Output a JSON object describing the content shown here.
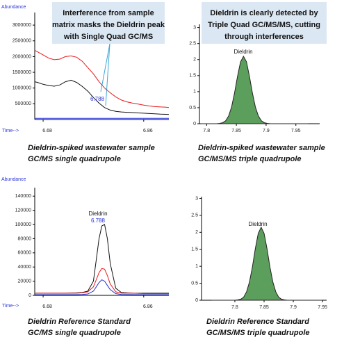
{
  "chart_data": [
    {
      "type": "line",
      "ylabel": "Abundance",
      "xlabel": "Time-->",
      "callout": [
        "Interference from sample",
        "matrix masks the Dieldrin peak",
        "with Single Quad GC/MS"
      ],
      "annotations": [
        "6.788"
      ],
      "caption": [
        "Dieldrin-spiked wastewater sample",
        "GC/MS single quadrupole"
      ],
      "x": [
        6.665,
        6.67,
        6.68,
        6.69,
        6.7,
        6.71,
        6.72,
        6.73,
        6.74,
        6.75,
        6.76,
        6.77,
        6.78,
        6.79,
        6.8,
        6.81,
        6.82,
        6.83,
        6.84,
        6.85,
        6.86,
        6.87,
        6.88,
        6.89,
        6.9,
        6.905
      ],
      "series": [
        {
          "color": "#e8191b",
          "values": [
            2200000,
            2150000,
            2050000,
            1950000,
            1900000,
            1920000,
            2000000,
            2020000,
            1980000,
            1850000,
            1650000,
            1450000,
            1200000,
            1000000,
            850000,
            720000,
            620000,
            560000,
            520000,
            490000,
            460000,
            430000,
            410000,
            400000,
            390000,
            380000
          ]
        },
        {
          "color": "#111111",
          "values": [
            1200000,
            1180000,
            1120000,
            1080000,
            1060000,
            1100000,
            1200000,
            1250000,
            1180000,
            1050000,
            900000,
            700000,
            520000,
            380000,
            300000,
            260000,
            240000,
            230000,
            220000,
            210000,
            200000,
            190000,
            180000,
            170000,
            165000,
            160000
          ]
        },
        {
          "color": "#2430d8",
          "values": [
            40000,
            40000,
            40000,
            40000,
            40000,
            40000,
            40000,
            40000,
            40000,
            40000,
            40000,
            40000,
            40000,
            40000,
            40000,
            40000,
            40000,
            40000,
            40000,
            40000,
            40000,
            40000,
            40000,
            40000,
            40000,
            40000
          ]
        }
      ],
      "xlim": [
        6.665,
        6.905
      ],
      "ylim": [
        0,
        3400000
      ],
      "xticks": [
        6.68,
        6.86
      ],
      "yticks": [
        500000,
        1000000,
        1500000,
        2000000,
        2500000,
        3000000
      ]
    },
    {
      "type": "area",
      "callout": [
        "Dieldrin is clearly detected by",
        "Triple Quad GC/MS/MS, cutting",
        "through interferences"
      ],
      "annotations": [
        "Dieldrin"
      ],
      "caption": [
        "Dieldrin-spiked wastewater sample",
        "GC/MS/MS triple quadrupole"
      ],
      "x": [
        7.79,
        7.812,
        7.817,
        7.822,
        7.827,
        7.832,
        7.837,
        7.842,
        7.847,
        7.852,
        7.857,
        7.862,
        7.867,
        7.872,
        7.877,
        7.882,
        7.887,
        7.892,
        7.897,
        7.902,
        7.907,
        7.912,
        7.97
      ],
      "series": [
        {
          "color": "#5c9e5c",
          "values": [
            0,
            0,
            0,
            0.01,
            0.03,
            0.09,
            0.24,
            0.52,
            0.96,
            1.48,
            1.93,
            2.1,
            1.93,
            1.48,
            0.96,
            0.52,
            0.24,
            0.09,
            0.03,
            0.01,
            0,
            0,
            0
          ]
        }
      ],
      "xlim": [
        7.788,
        7.99
      ],
      "ylim": [
        0,
        3.1
      ],
      "xticks": [
        7.8,
        7.85,
        7.9,
        7.95
      ],
      "yticks": [
        0,
        0.5,
        1,
        1.5,
        2,
        2.5,
        3
      ]
    },
    {
      "type": "line",
      "ylabel": "Abundance",
      "xlabel": "Time-->",
      "annotations": [
        "Dieldrin",
        "6.788"
      ],
      "caption": [
        "Dieldrin Reference Standard",
        "GC/MS single quadrupole"
      ],
      "x": [
        6.665,
        6.68,
        6.7,
        6.72,
        6.74,
        6.75,
        6.76,
        6.77,
        6.775,
        6.78,
        6.785,
        6.79,
        6.795,
        6.8,
        6.81,
        6.82,
        6.84,
        6.86,
        6.88,
        6.9,
        6.905
      ],
      "series": [
        {
          "color": "#111111",
          "values": [
            3000,
            3000,
            3000,
            3000,
            3500,
            4000,
            6000,
            20000,
            50000,
            80000,
            98000,
            100000,
            80000,
            45000,
            10000,
            4000,
            3000,
            3000,
            3000,
            3000,
            3000
          ]
        },
        {
          "color": "#e8191b",
          "values": [
            3000,
            3000,
            3000,
            3000,
            3000,
            3500,
            5000,
            12000,
            22000,
            32000,
            38000,
            37000,
            28000,
            16000,
            5000,
            3000,
            3000,
            2500,
            2500,
            2500,
            2500
          ]
        },
        {
          "color": "#2430d8",
          "values": [
            1000,
            1000,
            1000,
            1000,
            1000,
            1200,
            2000,
            6000,
            12000,
            18000,
            22000,
            20000,
            14000,
            8000,
            2500,
            1200,
            1000,
            1000,
            1000,
            1000,
            1000
          ]
        }
      ],
      "xlim": [
        6.665,
        6.905
      ],
      "ylim": [
        0,
        152000
      ],
      "xticks": [
        6.68,
        6.86
      ],
      "yticks": [
        0,
        20000,
        40000,
        60000,
        80000,
        100000,
        120000,
        140000
      ]
    },
    {
      "type": "area",
      "annotations": [
        "Dieldrin"
      ],
      "caption": [
        "Dieldrin Reference Standard",
        "GC/MS/MS triple quadrupole"
      ],
      "x": [
        7.76,
        7.795,
        7.8,
        7.805,
        7.81,
        7.815,
        7.82,
        7.825,
        7.83,
        7.835,
        7.84,
        7.845,
        7.85,
        7.855,
        7.86,
        7.865,
        7.87,
        7.875,
        7.88,
        7.885,
        7.89,
        7.895,
        7.95
      ],
      "series": [
        {
          "color": "#5c9e5c",
          "values": [
            0,
            0,
            0,
            0.01,
            0.03,
            0.09,
            0.25,
            0.54,
            0.98,
            1.52,
            1.97,
            2.15,
            1.97,
            1.52,
            0.98,
            0.54,
            0.25,
            0.09,
            0.03,
            0.01,
            0,
            0,
            0
          ]
        }
      ],
      "xlim": [
        7.743,
        7.957
      ],
      "ylim": [
        0,
        3.05
      ],
      "xticks": [
        7.8,
        7.85,
        7.9,
        7.95
      ],
      "yticks": [
        0,
        0.5,
        1,
        1.5,
        2,
        2.5,
        3
      ]
    }
  ]
}
